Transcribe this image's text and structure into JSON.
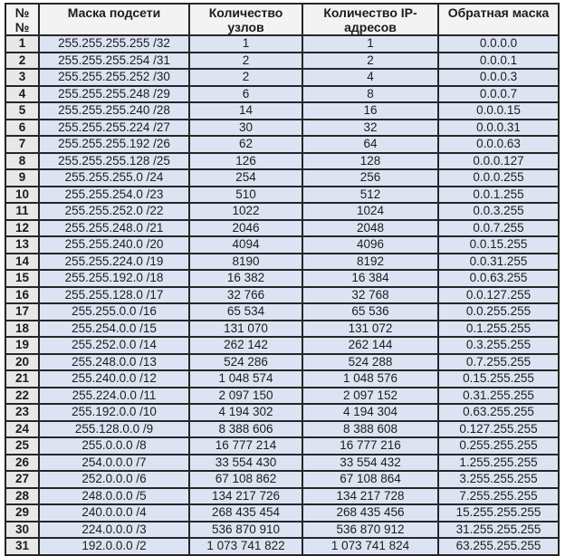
{
  "table": {
    "headers": [
      "№№",
      "Маска подсети",
      "Количество узлов",
      "Количество IP-адресов",
      "Обратная маска"
    ],
    "rows": [
      {
        "num": "1",
        "mask": "255.255.255.255 /32",
        "hosts": "1",
        "ips": "1",
        "wildcard": "0.0.0.0"
      },
      {
        "num": "2",
        "mask": "255.255.255.254 /31",
        "hosts": "2",
        "ips": "2",
        "wildcard": "0.0.0.1"
      },
      {
        "num": "3",
        "mask": "255.255.255.252 /30",
        "hosts": "2",
        "ips": "4",
        "wildcard": "0.0.0.3"
      },
      {
        "num": "4",
        "mask": "255.255.255.248 /29",
        "hosts": "6",
        "ips": "8",
        "wildcard": "0.0.0.7"
      },
      {
        "num": "5",
        "mask": "255.255.255.240 /28",
        "hosts": "14",
        "ips": "16",
        "wildcard": "0.0.0.15"
      },
      {
        "num": "6",
        "mask": "255.255.255.224 /27",
        "hosts": "30",
        "ips": "32",
        "wildcard": "0.0.0.31"
      },
      {
        "num": "7",
        "mask": "255.255.255.192 /26",
        "hosts": "62",
        "ips": "64",
        "wildcard": "0.0.0.63"
      },
      {
        "num": "8",
        "mask": "255.255.255.128 /25",
        "hosts": "126",
        "ips": "128",
        "wildcard": "0.0.0.127"
      },
      {
        "num": "9",
        "mask": "255.255.255.0 /24",
        "hosts": "254",
        "ips": "256",
        "wildcard": "0.0.0.255"
      },
      {
        "num": "10",
        "mask": "255.255.254.0 /23",
        "hosts": "510",
        "ips": "512",
        "wildcard": "0.0.1.255"
      },
      {
        "num": "11",
        "mask": "255.255.252.0 /22",
        "hosts": "1022",
        "ips": "1024",
        "wildcard": "0.0.3.255"
      },
      {
        "num": "12",
        "mask": "255.255.248.0 /21",
        "hosts": "2046",
        "ips": "2048",
        "wildcard": "0.0.7.255"
      },
      {
        "num": "13",
        "mask": "255.255.240.0 /20",
        "hosts": "4094",
        "ips": "4096",
        "wildcard": "0.0.15.255"
      },
      {
        "num": "14",
        "mask": "255.255.224.0 /19",
        "hosts": "8190",
        "ips": "8192",
        "wildcard": "0.0.31.255"
      },
      {
        "num": "15",
        "mask": "255.255.192.0 /18",
        "hosts": "16 382",
        "ips": "16 384",
        "wildcard": "0.0.63.255"
      },
      {
        "num": "16",
        "mask": "255.255.128.0 /17",
        "hosts": "32 766",
        "ips": "32 768",
        "wildcard": "0.0.127.255"
      },
      {
        "num": "17",
        "mask": "255.255.0.0 /16",
        "hosts": "65 534",
        "ips": "65 536",
        "wildcard": "0.0.255.255"
      },
      {
        "num": "18",
        "mask": "255.254.0.0 /15",
        "hosts": "131 070",
        "ips": "131 072",
        "wildcard": "0.1.255.255"
      },
      {
        "num": "19",
        "mask": "255.252.0.0 /14",
        "hosts": "262 142",
        "ips": "262 144",
        "wildcard": "0.3.255.255"
      },
      {
        "num": "20",
        "mask": "255.248.0.0 /13",
        "hosts": "524 286",
        "ips": "524 288",
        "wildcard": "0.7.255.255"
      },
      {
        "num": "21",
        "mask": "255.240.0.0 /12",
        "hosts": "1 048 574",
        "ips": "1 048 576",
        "wildcard": "0.15.255.255"
      },
      {
        "num": "22",
        "mask": "255.224.0.0 /11",
        "hosts": "2 097 150",
        "ips": "2 097 152",
        "wildcard": "0.31.255.255"
      },
      {
        "num": "23",
        "mask": "255.192.0.0 /10",
        "hosts": "4 194 302",
        "ips": "4 194 304",
        "wildcard": "0.63.255.255"
      },
      {
        "num": "24",
        "mask": "255.128.0.0 /9",
        "hosts": "8 388 606",
        "ips": "8 388 608",
        "wildcard": "0.127.255.255"
      },
      {
        "num": "25",
        "mask": "255.0.0.0 /8",
        "hosts": "16 777 214",
        "ips": "16 777 216",
        "wildcard": "0.255.255.255"
      },
      {
        "num": "26",
        "mask": "254.0.0.0 /7",
        "hosts": "33 554 430",
        "ips": "33 554 432",
        "wildcard": "1.255.255.255"
      },
      {
        "num": "27",
        "mask": "252.0.0.0 /6",
        "hosts": "67 108 862",
        "ips": "67 108 864",
        "wildcard": "3.255.255.255"
      },
      {
        "num": "28",
        "mask": "248.0.0.0 /5",
        "hosts": "134 217 726",
        "ips": "134 217 728",
        "wildcard": "7.255.255.255"
      },
      {
        "num": "29",
        "mask": "240.0.0.0 /4",
        "hosts": "268 435 454",
        "ips": "268 435 456",
        "wildcard": "15.255.255.255"
      },
      {
        "num": "30",
        "mask": "224.0.0.0 /3",
        "hosts": "536 870 910",
        "ips": "536 870 912",
        "wildcard": "31.255.255.255"
      },
      {
        "num": "31",
        "mask": "192.0.0.0 /2",
        "hosts": "1 073 741 822",
        "ips": "1 073 741 824",
        "wildcard": "63.255.255.255"
      }
    ]
  },
  "colors": {
    "data_cell": "#dce4f3",
    "num_column": "#e8e8e8",
    "header": "#f3f3f3",
    "border": "#262626",
    "background": "#ffffff"
  }
}
